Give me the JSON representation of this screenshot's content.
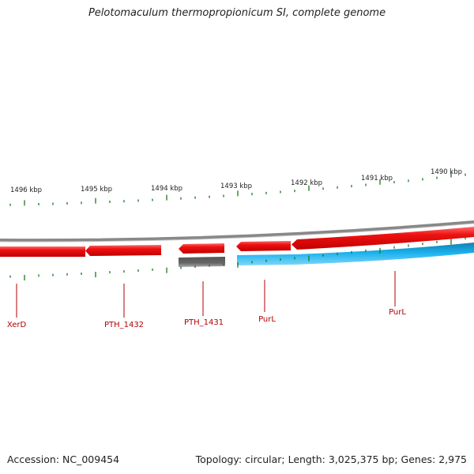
{
  "title": "Pelotomaculum thermopropionicum SI, complete genome",
  "footer": {
    "accession": "Accession: NC_009454",
    "summary": "Topology: circular; Length: 3,025,375 bp; Genes: 2,975"
  },
  "scale_labels": [
    "1496 kbp",
    "1495 kbp",
    "1494 kbp",
    "1493 kbp",
    "1492 kbp",
    "1491 kbp",
    "1490 kbp"
  ],
  "genes": [
    {
      "label": "XerD",
      "strand": "reverse"
    },
    {
      "label": "PTH_1432",
      "strand": "reverse"
    },
    {
      "label": "PTH_1431",
      "strand": "reverse"
    },
    {
      "label": "PurL",
      "strand": "reverse"
    },
    {
      "label": "PurL",
      "strand": "reverse"
    }
  ],
  "colors": {
    "gene": "#ee1111",
    "gene_label": "#b30000",
    "tick": "#1a7a1a",
    "backbone": "#888888",
    "rna": "#666666",
    "feature": "#1ab2ee"
  }
}
